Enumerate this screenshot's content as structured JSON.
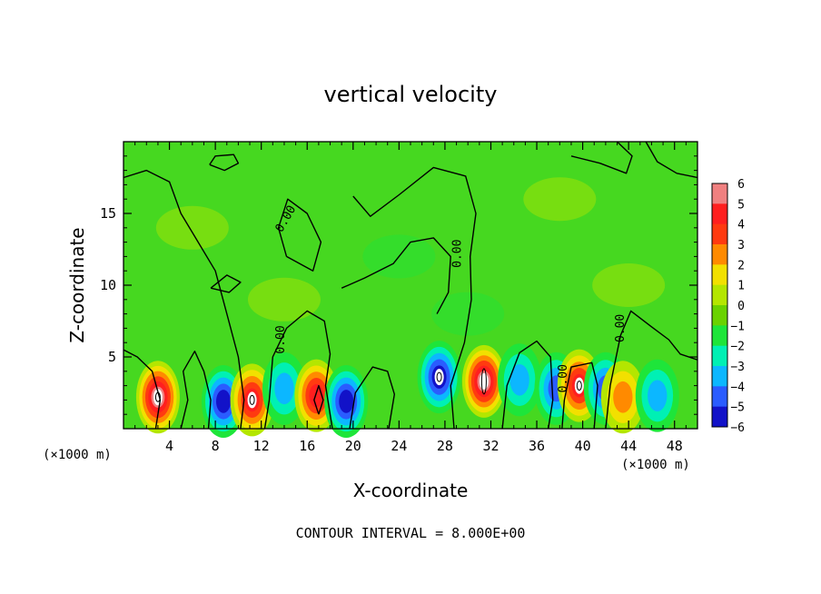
{
  "chart_data": {
    "type": "heatmap",
    "title": "vertical velocity",
    "xlabel": "X-coordinate",
    "ylabel": "Z-coordinate",
    "x_unit_left": "(×1000 m)",
    "x_unit_right": "(×1000 m)",
    "xlim": [
      0,
      50
    ],
    "ylim": [
      0,
      20
    ],
    "x_ticks": [
      "4",
      "8",
      "12",
      "16",
      "20",
      "24",
      "28",
      "32",
      "36",
      "40",
      "44",
      "48"
    ],
    "y_ticks": [
      "5",
      "10",
      "15"
    ],
    "colorbar": {
      "levels": [
        "6",
        "5",
        "4",
        "3",
        "2",
        "1",
        "0",
        "−1",
        "−2",
        "−3",
        "−4",
        "−5",
        "−6"
      ],
      "colors": [
        "#f08080",
        "#ff1f1f",
        "#ff3a10",
        "#ff8a00",
        "#f2e000",
        "#b4e600",
        "#6ad200",
        "#1ee53a",
        "#00f0b4",
        "#0cb7ff",
        "#2a5cff",
        "#1212c8",
        "#6a009a"
      ]
    },
    "contour_label": "0.00",
    "contour_interval_text": "CONTOUR INTERVAL = 8.000E+00",
    "features": [
      {
        "x": 3,
        "z": 2.2,
        "w": 5.5
      },
      {
        "x": 8.7,
        "z": 1.9,
        "w": -4.8
      },
      {
        "x": 11.2,
        "z": 2.0,
        "w": 5.0
      },
      {
        "x": 14.0,
        "z": 2.8,
        "w": -3.0
      },
      {
        "x": 16.8,
        "z": 2.3,
        "w": 4.8
      },
      {
        "x": 19.4,
        "z": 1.9,
        "w": -4.6
      },
      {
        "x": 27.5,
        "z": 3.6,
        "w": -5.0
      },
      {
        "x": 31.4,
        "z": 3.3,
        "w": 6.0
      },
      {
        "x": 34.5,
        "z": 3.4,
        "w": -2.8
      },
      {
        "x": 37.7,
        "z": 2.8,
        "w": -4.0
      },
      {
        "x": 39.7,
        "z": 3.0,
        "w": 5.3
      },
      {
        "x": 42.0,
        "z": 2.8,
        "w": -4.2
      },
      {
        "x": 43.5,
        "z": 2.2,
        "w": 2.6
      },
      {
        "x": 46.5,
        "z": 2.3,
        "w": -2.7
      }
    ]
  }
}
